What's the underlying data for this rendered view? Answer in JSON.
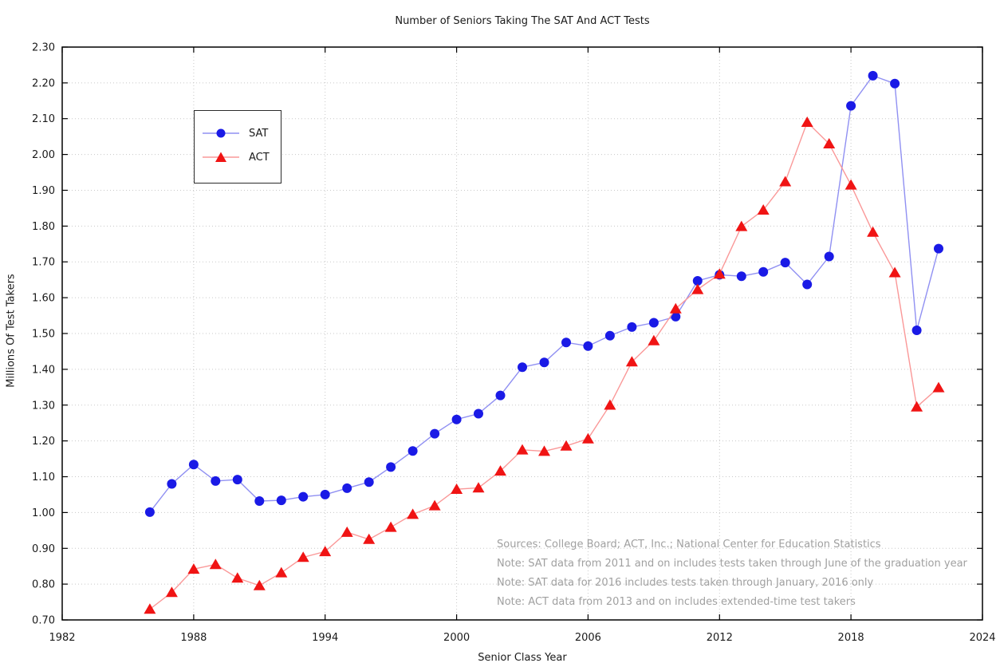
{
  "chart_data": {
    "type": "line",
    "title": "Number of Seniors Taking The SAT And ACT Tests",
    "xlabel": "Senior Class Year",
    "ylabel": "Millions Of Test Takers",
    "grid": "dotted",
    "grid_color": "#c8c8c8",
    "legend_position": "upper-left-inside",
    "notes_color": "#a0a0a0",
    "notes": [
      "Sources: College Board; ACT, Inc.; National Center for Education Statistics",
      "Note: SAT data from 2011 and on includes tests taken through June of the graduation year",
      "Note: SAT data for 2016 includes tests taken through January, 2016 only",
      "Note: ACT data from 2013 and on includes extended-time test takers"
    ],
    "x_axis": {
      "min": 1982,
      "max": 2024,
      "tick_step": 6,
      "tick_labels": [
        "1982",
        "1988",
        "1994",
        "2000",
        "2006",
        "2012",
        "2018",
        "2024"
      ]
    },
    "y_axis": {
      "min": 0.7,
      "max": 2.3,
      "tick_step": 0.1,
      "tick_labels": [
        "0.70",
        "0.80",
        "0.90",
        "1.00",
        "1.10",
        "1.20",
        "1.30",
        "1.40",
        "1.50",
        "1.60",
        "1.70",
        "1.80",
        "1.90",
        "2.00",
        "2.10",
        "2.20",
        "2.30"
      ]
    },
    "x": [
      1986,
      1987,
      1988,
      1989,
      1990,
      1991,
      1992,
      1993,
      1994,
      1995,
      1996,
      1997,
      1998,
      1999,
      2000,
      2001,
      2002,
      2003,
      2004,
      2005,
      2006,
      2007,
      2008,
      2009,
      2010,
      2011,
      2012,
      2013,
      2014,
      2015,
      2016,
      2017,
      2018,
      2019,
      2020,
      2021,
      2022
    ],
    "series": [
      {
        "name": "SAT",
        "marker": "circle",
        "marker_color": "#1a1ae6",
        "line_color": "#9090f2",
        "values": [
          1.001,
          1.08,
          1.134,
          1.088,
          1.092,
          1.032,
          1.034,
          1.044,
          1.05,
          1.068,
          1.085,
          1.127,
          1.172,
          1.22,
          1.26,
          1.276,
          1.327,
          1.406,
          1.419,
          1.475,
          1.465,
          1.494,
          1.518,
          1.53,
          1.547,
          1.647,
          1.664,
          1.66,
          1.672,
          1.698,
          1.637,
          1.715,
          2.136,
          2.22,
          2.198,
          1.509,
          1.737
        ]
      },
      {
        "name": "ACT",
        "marker": "triangle",
        "marker_color": "#f01414",
        "line_color": "#fa9898",
        "values": [
          0.73,
          0.777,
          0.842,
          0.855,
          0.817,
          0.796,
          0.832,
          0.875,
          0.891,
          0.945,
          0.925,
          0.959,
          0.995,
          1.019,
          1.065,
          1.069,
          1.116,
          1.175,
          1.171,
          1.186,
          1.206,
          1.3,
          1.421,
          1.48,
          1.569,
          1.623,
          1.666,
          1.799,
          1.845,
          1.924,
          2.09,
          2.03,
          1.915,
          1.783,
          1.67,
          1.295,
          1.349
        ]
      }
    ]
  }
}
